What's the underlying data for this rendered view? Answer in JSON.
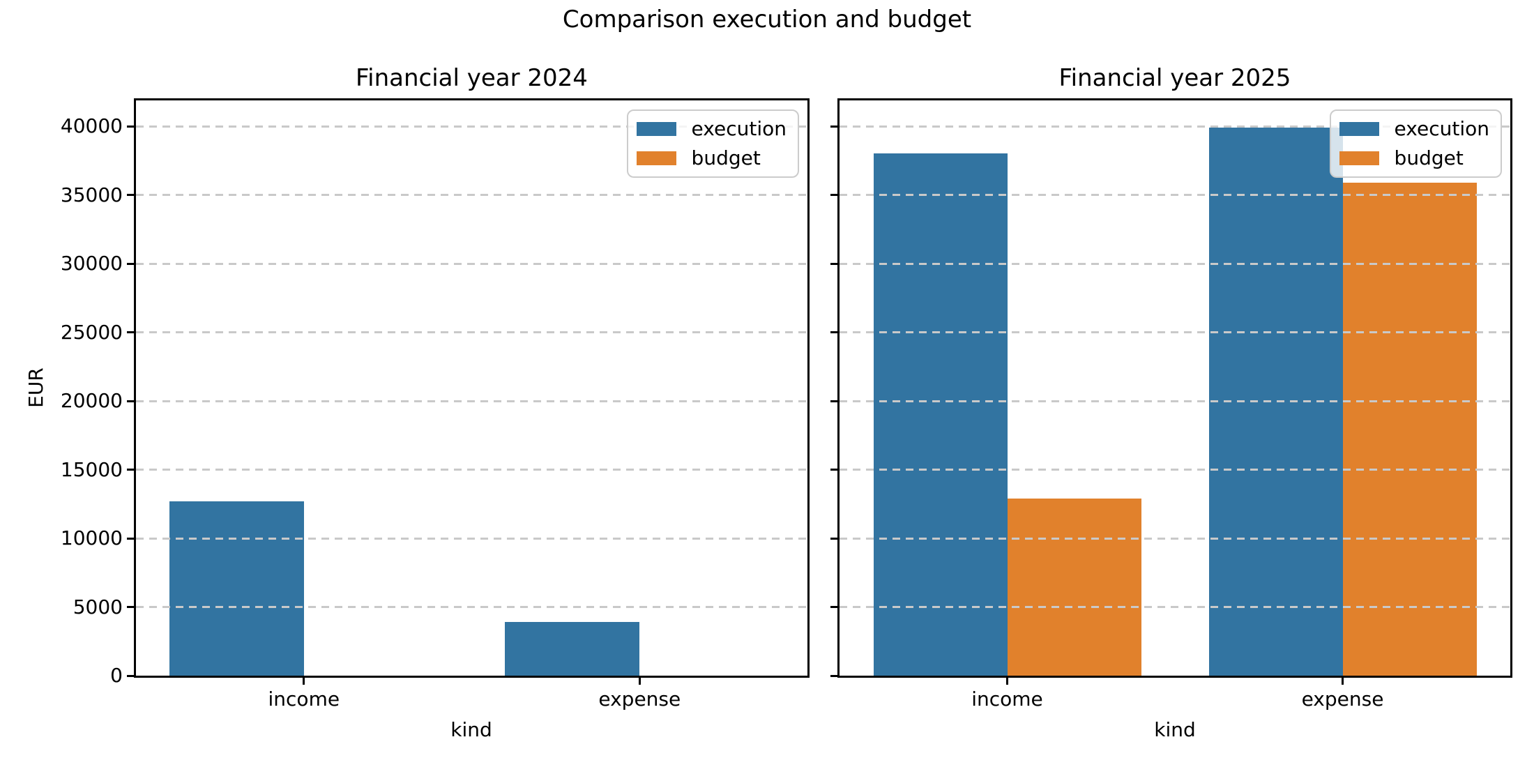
{
  "chart_data": {
    "type": "bar",
    "suptitle": "Comparison execution and budget",
    "xlabel": "kind",
    "ylabel": "EUR",
    "categories": [
      "income",
      "expense"
    ],
    "yticks": [
      "0",
      "5000",
      "10000",
      "15000",
      "20000",
      "25000",
      "30000",
      "35000",
      "40000"
    ],
    "ylim": [
      0,
      41878
    ],
    "grid": {
      "axis": "y",
      "style": "dashed",
      "color": "#c9c9c9"
    },
    "legend": {
      "position": "upper right",
      "entries": [
        "execution",
        "budget"
      ]
    },
    "series_colors": {
      "execution": "#3274a1",
      "budget": "#e1812c"
    },
    "subplots": [
      {
        "title": "Financial year 2024",
        "series": [
          {
            "name": "execution",
            "values": [
              12700,
              3900
            ]
          },
          {
            "name": "budget",
            "values": [
              null,
              null
            ]
          }
        ]
      },
      {
        "title": "Financial year 2025",
        "series": [
          {
            "name": "execution",
            "values": [
              38000,
              39900
            ]
          },
          {
            "name": "budget",
            "values": [
              12900,
              35900
            ]
          }
        ]
      }
    ]
  }
}
